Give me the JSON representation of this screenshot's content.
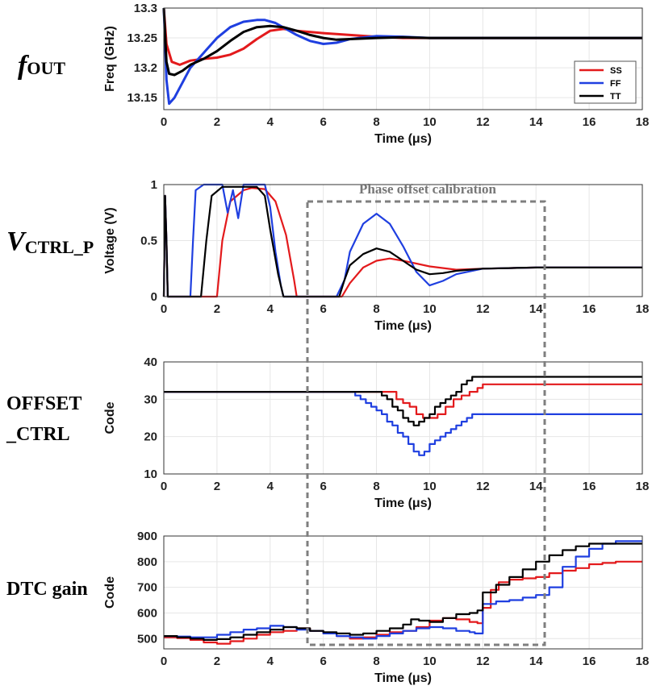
{
  "side_labels": {
    "fout_main": "f",
    "fout_sub": "OUT",
    "vctrl_main": "V",
    "vctrl_sub": "CTRL_P",
    "offset_line1": "OFFSET",
    "offset_line2": "_CTRL",
    "dtc": "DTC gain"
  },
  "annotation": "Phase offset calibration",
  "colors": {
    "SS": "#e31a1c",
    "FF": "#1f3fe0",
    "TT": "#000000",
    "grid": "#e6e6e6",
    "annotation": "#7f7f7f"
  },
  "chart_data": [
    {
      "id": "fout",
      "type": "line",
      "xlabel": "Time (μs)",
      "ylabel": "Freq (GHz)",
      "xlim": [
        0,
        18
      ],
      "ylim": [
        13.13,
        13.3
      ],
      "xticks": [
        0,
        2,
        4,
        6,
        8,
        10,
        12,
        14,
        16,
        18
      ],
      "yticks": [
        13.15,
        13.2,
        13.25,
        13.3
      ],
      "ytick_labels": [
        "13.15",
        "13.2",
        "13.25",
        "13.3"
      ],
      "legend": {
        "placement": "right",
        "entries": [
          "SS",
          "FF",
          "TT"
        ]
      },
      "series": [
        {
          "name": "SS",
          "x": [
            0,
            0.1,
            0.3,
            0.6,
            1.0,
            1.5,
            2.0,
            2.5,
            3.0,
            3.5,
            4.0,
            4.5,
            5.0,
            6.0,
            7.0,
            8.0,
            9.0,
            10.0,
            18.0
          ],
          "y": [
            13.3,
            13.24,
            13.21,
            13.205,
            13.212,
            13.215,
            13.217,
            13.222,
            13.232,
            13.248,
            13.262,
            13.265,
            13.262,
            13.258,
            13.255,
            13.252,
            13.25,
            13.25,
            13.25
          ]
        },
        {
          "name": "FF",
          "x": [
            0,
            0.1,
            0.2,
            0.4,
            0.7,
            1.0,
            1.5,
            2.0,
            2.5,
            3.0,
            3.5,
            3.8,
            4.2,
            4.6,
            5.0,
            5.5,
            6.0,
            6.5,
            7.0,
            8.0,
            9.0,
            10.0,
            18.0
          ],
          "y": [
            13.3,
            13.18,
            13.14,
            13.15,
            13.175,
            13.2,
            13.225,
            13.25,
            13.268,
            13.277,
            13.28,
            13.28,
            13.275,
            13.265,
            13.255,
            13.245,
            13.24,
            13.242,
            13.248,
            13.253,
            13.252,
            13.25,
            13.25
          ]
        },
        {
          "name": "TT",
          "x": [
            0,
            0.1,
            0.2,
            0.4,
            0.7,
            1.0,
            1.5,
            2.0,
            2.5,
            3.0,
            3.5,
            4.0,
            4.5,
            5.0,
            5.5,
            6.0,
            6.5,
            7.0,
            8.0,
            9.0,
            10.0,
            18.0
          ],
          "y": [
            13.3,
            13.21,
            13.19,
            13.188,
            13.195,
            13.205,
            13.215,
            13.228,
            13.245,
            13.26,
            13.268,
            13.27,
            13.268,
            13.262,
            13.255,
            13.25,
            13.247,
            13.248,
            13.25,
            13.251,
            13.25,
            13.25
          ]
        }
      ]
    },
    {
      "id": "vctrl",
      "type": "line",
      "xlabel": "Time (μs)",
      "ylabel": "Voltage (V)",
      "xlim": [
        0,
        18
      ],
      "ylim": [
        0,
        1
      ],
      "xticks": [
        0,
        2,
        4,
        6,
        8,
        10,
        12,
        14,
        16,
        18
      ],
      "yticks": [
        0,
        0.5,
        1
      ],
      "ytick_labels": [
        "0",
        "0.5",
        "1"
      ],
      "series": [
        {
          "name": "SS",
          "x": [
            0,
            0.05,
            0.1,
            0.15,
            2.0,
            2.2,
            2.5,
            3.0,
            3.3,
            3.8,
            4.2,
            4.6,
            4.9,
            5.0,
            6.7,
            7.0,
            7.5,
            8.0,
            8.5,
            9.0,
            10.0,
            11.0,
            12.0,
            14.0,
            18.0
          ],
          "y": [
            0,
            0.9,
            0.5,
            0,
            0,
            0.5,
            0.85,
            0.95,
            0.97,
            0.96,
            0.85,
            0.55,
            0.15,
            0,
            0,
            0.12,
            0.26,
            0.32,
            0.34,
            0.32,
            0.27,
            0.24,
            0.25,
            0.26,
            0.26
          ]
        },
        {
          "name": "FF",
          "x": [
            0,
            0.05,
            0.1,
            0.15,
            1.0,
            1.1,
            1.2,
            1.5,
            1.8,
            2.0,
            2.2,
            2.4,
            2.6,
            2.8,
            3.0,
            3.5,
            3.8,
            4.0,
            4.2,
            4.4,
            4.5,
            6.5,
            6.8,
            7.0,
            7.5,
            8.0,
            8.5,
            9.0,
            9.5,
            10.0,
            10.5,
            11.0,
            12.0,
            14.0,
            18.0
          ],
          "y": [
            0,
            0.9,
            0.5,
            0,
            0,
            0.5,
            0.95,
            1.0,
            1.0,
            1.0,
            1.0,
            0.75,
            0.95,
            0.7,
            1.0,
            1.0,
            1.0,
            0.8,
            0.4,
            0.1,
            0,
            0,
            0.15,
            0.4,
            0.65,
            0.74,
            0.65,
            0.45,
            0.22,
            0.1,
            0.14,
            0.2,
            0.25,
            0.26,
            0.26
          ]
        },
        {
          "name": "TT",
          "x": [
            0,
            0.05,
            0.1,
            0.15,
            1.4,
            1.6,
            1.8,
            2.2,
            3.0,
            3.5,
            3.8,
            4.0,
            4.3,
            4.5,
            6.6,
            6.8,
            7.0,
            7.5,
            8.0,
            8.5,
            9.0,
            9.5,
            10.0,
            10.5,
            11.0,
            12.0,
            14.0,
            18.0
          ],
          "y": [
            0,
            0.9,
            0.5,
            0,
            0,
            0.5,
            0.9,
            0.98,
            0.98,
            0.98,
            0.9,
            0.6,
            0.2,
            0,
            0,
            0.15,
            0.28,
            0.38,
            0.43,
            0.4,
            0.32,
            0.24,
            0.2,
            0.21,
            0.23,
            0.25,
            0.26,
            0.26
          ]
        }
      ]
    },
    {
      "id": "offset",
      "type": "line",
      "step": true,
      "xlabel": "Time (μs)",
      "ylabel": "Code",
      "xlim": [
        0,
        18
      ],
      "ylim": [
        10,
        40
      ],
      "xticks": [
        0,
        2,
        4,
        6,
        8,
        10,
        12,
        14,
        16,
        18
      ],
      "yticks": [
        10,
        20,
        30,
        40
      ],
      "ytick_labels": [
        "10",
        "20",
        "30",
        "40"
      ],
      "series": [
        {
          "name": "SS",
          "x": [
            0,
            8.0,
            8.25,
            8.5,
            8.75,
            9.0,
            9.25,
            9.5,
            9.75,
            10.0,
            10.3,
            10.6,
            10.9,
            11.2,
            11.5,
            11.8,
            12.0,
            18.0
          ],
          "y": [
            32,
            32,
            32,
            32,
            30,
            29,
            28,
            26,
            25,
            25,
            26,
            28,
            30,
            31,
            32,
            33,
            34,
            34
          ]
        },
        {
          "name": "FF",
          "x": [
            0,
            7.0,
            7.2,
            7.4,
            7.6,
            7.8,
            8.0,
            8.2,
            8.4,
            8.6,
            8.8,
            9.0,
            9.2,
            9.4,
            9.6,
            9.8,
            10.0,
            10.2,
            10.4,
            10.6,
            10.8,
            11.0,
            11.2,
            11.4,
            11.6,
            18.0
          ],
          "y": [
            32,
            32,
            31,
            30,
            29,
            28,
            27,
            26,
            24,
            23,
            21,
            20,
            18,
            16,
            15,
            16,
            18,
            19,
            20,
            21,
            22,
            23,
            24,
            25,
            26,
            26
          ]
        },
        {
          "name": "TT",
          "x": [
            0,
            8.0,
            8.2,
            8.4,
            8.6,
            8.8,
            9.0,
            9.2,
            9.4,
            9.6,
            9.8,
            10.0,
            10.2,
            10.4,
            10.6,
            10.8,
            11.0,
            11.2,
            11.4,
            11.6,
            18.0
          ],
          "y": [
            32,
            32,
            31,
            30,
            28,
            27,
            25,
            24,
            23,
            24,
            25,
            26,
            28,
            29,
            30,
            31,
            32,
            34,
            35,
            36,
            36
          ]
        }
      ]
    },
    {
      "id": "dtc",
      "type": "line",
      "step": true,
      "xlabel": "Time (μs)",
      "ylabel": "Code",
      "xlim": [
        0,
        18
      ],
      "ylim": [
        460,
        900
      ],
      "xticks": [
        0,
        2,
        4,
        6,
        8,
        10,
        12,
        14,
        16,
        18
      ],
      "yticks": [
        500,
        600,
        700,
        800,
        900
      ],
      "ytick_labels": [
        "500",
        "600",
        "700",
        "800",
        "900"
      ],
      "series": [
        {
          "name": "SS",
          "x": [
            0,
            0.5,
            1.0,
            1.5,
            2.0,
            2.5,
            3.0,
            3.5,
            4.0,
            4.5,
            5.0,
            5.5,
            6.0,
            6.5,
            7.0,
            7.5,
            8.0,
            8.5,
            9.0,
            9.5,
            10.0,
            10.5,
            11.0,
            11.5,
            11.8,
            12.0,
            12.3,
            12.6,
            13.0,
            13.5,
            14.0,
            14.5,
            15.0,
            15.5,
            16.0,
            16.5,
            17.0,
            18.0
          ],
          "y": [
            505,
            502,
            495,
            485,
            480,
            490,
            500,
            515,
            525,
            530,
            540,
            530,
            520,
            510,
            500,
            505,
            515,
            525,
            530,
            545,
            570,
            580,
            575,
            565,
            560,
            620,
            690,
            720,
            730,
            735,
            740,
            755,
            765,
            775,
            790,
            795,
            800,
            800
          ]
        },
        {
          "name": "FF",
          "x": [
            0,
            0.5,
            1.0,
            1.5,
            2.0,
            2.5,
            3.0,
            3.5,
            4.0,
            4.5,
            5.0,
            5.5,
            6.0,
            6.5,
            7.0,
            7.5,
            8.0,
            8.5,
            9.0,
            9.5,
            10.0,
            10.5,
            11.0,
            11.5,
            11.7,
            12.0,
            12.5,
            13.0,
            13.5,
            14.0,
            14.5,
            15.0,
            15.5,
            16.0,
            16.5,
            17.0,
            18.0
          ],
          "y": [
            510,
            508,
            505,
            505,
            515,
            525,
            535,
            540,
            550,
            545,
            535,
            530,
            520,
            510,
            505,
            500,
            510,
            520,
            530,
            540,
            545,
            540,
            530,
            525,
            520,
            635,
            645,
            650,
            660,
            670,
            700,
            780,
            820,
            850,
            870,
            880,
            880
          ]
        },
        {
          "name": "TT",
          "x": [
            0,
            0.5,
            1.0,
            1.5,
            2.0,
            2.5,
            3.0,
            3.5,
            4.0,
            4.5,
            5.0,
            5.5,
            6.0,
            6.5,
            7.0,
            7.5,
            8.0,
            8.5,
            9.0,
            9.3,
            9.6,
            10.0,
            10.5,
            11.0,
            11.5,
            11.8,
            12.0,
            12.5,
            13.0,
            13.5,
            14.0,
            14.5,
            15.0,
            15.5,
            16.0,
            16.5,
            17.0,
            18.0
          ],
          "y": [
            510,
            505,
            500,
            495,
            498,
            505,
            515,
            525,
            535,
            545,
            540,
            530,
            525,
            520,
            515,
            520,
            530,
            540,
            555,
            575,
            570,
            565,
            580,
            595,
            600,
            610,
            680,
            710,
            740,
            770,
            800,
            825,
            845,
            860,
            870,
            870,
            870,
            870
          ]
        }
      ]
    }
  ]
}
